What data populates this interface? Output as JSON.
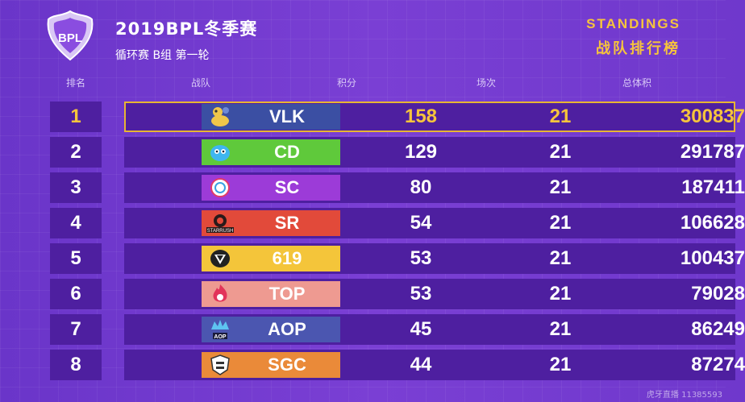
{
  "header": {
    "title": "2019BPL冬季赛",
    "subtitle": "循环赛 B组 第一轮",
    "logo_text": "BPL",
    "standings_en": "STANDINGS",
    "standings_cn": "战队排行榜"
  },
  "columns": {
    "rank": "排名",
    "team": "战队",
    "points": "积分",
    "matches": "场次",
    "total": "总体积"
  },
  "colors": {
    "accent": "#f6c43c",
    "row_bg": "#4e1fa0"
  },
  "rows": [
    {
      "rank": "1",
      "team": "VLK",
      "points": "158",
      "matches": "21",
      "total": "300837",
      "color": "#3b4fa3",
      "icon": "vlk-mascot-icon"
    },
    {
      "rank": "2",
      "team": "CD",
      "points": "129",
      "matches": "21",
      "total": "291787",
      "color": "#5fc93b",
      "icon": "cd-mascot-icon"
    },
    {
      "rank": "3",
      "team": "SC",
      "points": "80",
      "matches": "21",
      "total": "187411",
      "color": "#9c3bd8",
      "icon": "sc-shield-icon"
    },
    {
      "rank": "4",
      "team": "SR",
      "points": "54",
      "matches": "21",
      "total": "106628",
      "color": "#e24a3a",
      "icon": "starrush-icon",
      "logo_text": "STARRUSH"
    },
    {
      "rank": "5",
      "team": "619",
      "points": "53",
      "matches": "21",
      "total": "100437",
      "color": "#f4c53a",
      "icon": "619-shield-icon"
    },
    {
      "rank": "6",
      "team": "TOP",
      "points": "53",
      "matches": "21",
      "total": "79028",
      "color": "#ee9a91",
      "icon": "top-flame-icon"
    },
    {
      "rank": "7",
      "team": "AOP",
      "points": "45",
      "matches": "21",
      "total": "86249",
      "color": "#4b56b0",
      "icon": "aop-crown-icon",
      "logo_text": "AOP"
    },
    {
      "rank": "8",
      "team": "SGC",
      "points": "44",
      "matches": "21",
      "total": "87274",
      "color": "#ea8a39",
      "icon": "sgc-shield-icon"
    }
  ],
  "watermark": "虎牙直播 11385593"
}
